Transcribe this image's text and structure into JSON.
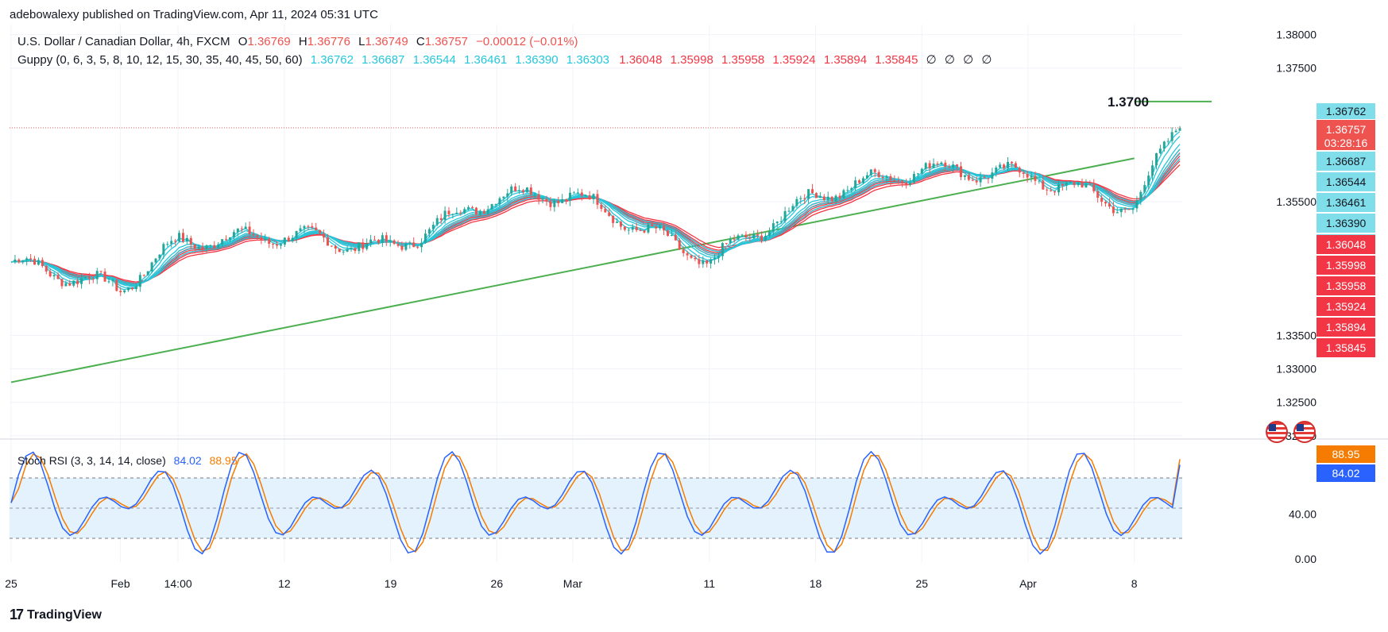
{
  "attribution": "adebowalexy published on TradingView.com, Apr 11, 2024 05:31 UTC",
  "symbol_line": {
    "title": "U.S. Dollar / Canadian Dollar, 4h, FXCM",
    "o_label": "O",
    "o": "1.36769",
    "h_label": "H",
    "h": "1.36776",
    "l_label": "L",
    "l": "1.36749",
    "c_label": "C",
    "c": "1.36757",
    "change": "−0.00012 (−0.01%)"
  },
  "guppy_line": {
    "title": "Guppy (0, 6, 3, 5, 8, 10, 12, 15, 30, 35, 40, 45, 50, 60)",
    "fast": [
      "1.36762",
      "1.36687",
      "1.36544",
      "1.36461",
      "1.36390",
      "1.36303"
    ],
    "slow": [
      "1.36048",
      "1.35998",
      "1.35958",
      "1.35924",
      "1.35894",
      "1.35845"
    ],
    "empty": [
      "∅",
      "∅",
      "∅",
      "∅"
    ]
  },
  "annotation": "1.3700",
  "price_axis": [
    "1.38000",
    "1.37500",
    "1.35500",
    "1.33500",
    "1.33000",
    "1.32500",
    "1.32000"
  ],
  "price_tags": {
    "current": "1.36757",
    "countdown": "03:28:16",
    "fast": [
      "1.36762",
      "1.36687",
      "1.36544",
      "1.36461",
      "1.36390",
      "1.36303"
    ],
    "slow": [
      "1.36048",
      "1.35998",
      "1.35958",
      "1.35924",
      "1.35894",
      "1.35845"
    ]
  },
  "stoch": {
    "title": "Stoch RSI (3, 3, 14, 14, close)",
    "k": "84.02",
    "d": "88.95",
    "axis": [
      "40.00",
      "0.00"
    ]
  },
  "time_axis": [
    "25",
    "Feb",
    "14:00",
    "12",
    "19",
    "26",
    "Mar",
    "11",
    "18",
    "25",
    "Apr",
    "8"
  ],
  "footer": {
    "logo": "17",
    "brand": "TradingView"
  },
  "colors": {
    "fast_ma": "#26c6da",
    "slow_ma": "#f23645",
    "trendline": "#4caf50",
    "stoch_k": "#2962ff",
    "stoch_d": "#f57c00",
    "band": "#e3f2fd",
    "up_candle": "#26a69a",
    "down_candle": "#ef5350"
  },
  "chart_data": [
    {
      "type": "candlestick",
      "title": "U.S. Dollar / Canadian Dollar, 4h, FXCM",
      "x": [
        "Jan 25",
        "Feb 1",
        "Feb 5",
        "Feb 12",
        "Feb 19",
        "Feb 26",
        "Mar 1",
        "Mar 11",
        "Mar 18",
        "Mar 25",
        "Apr 1",
        "Apr 8",
        "Apr 11"
      ],
      "close_approx": [
        1.346,
        1.342,
        1.349,
        1.35,
        1.348,
        1.356,
        1.356,
        1.346,
        1.356,
        1.36,
        1.359,
        1.354,
        1.36757
      ],
      "ylim": [
        1.3195,
        1.3815
      ],
      "annotations": [
        {
          "text": "1.3700",
          "price": 1.37
        }
      ],
      "trendlines": [
        {
          "from": [
            "Jan 25",
            1.328
          ],
          "to": [
            "Apr 8",
            1.3615
          ]
        },
        {
          "from": [
            "Apr 8",
            1.37
          ],
          "to": [
            "Apr 11",
            1.37
          ]
        }
      ]
    },
    {
      "type": "line",
      "title": "Stoch RSI (3, 3, 14, 14, close)",
      "series": [
        {
          "name": "K",
          "last": 84.02
        },
        {
          "name": "D",
          "last": 88.95
        }
      ],
      "ylim": [
        -3,
        107
      ],
      "bands": [
        20,
        50,
        80
      ]
    }
  ]
}
